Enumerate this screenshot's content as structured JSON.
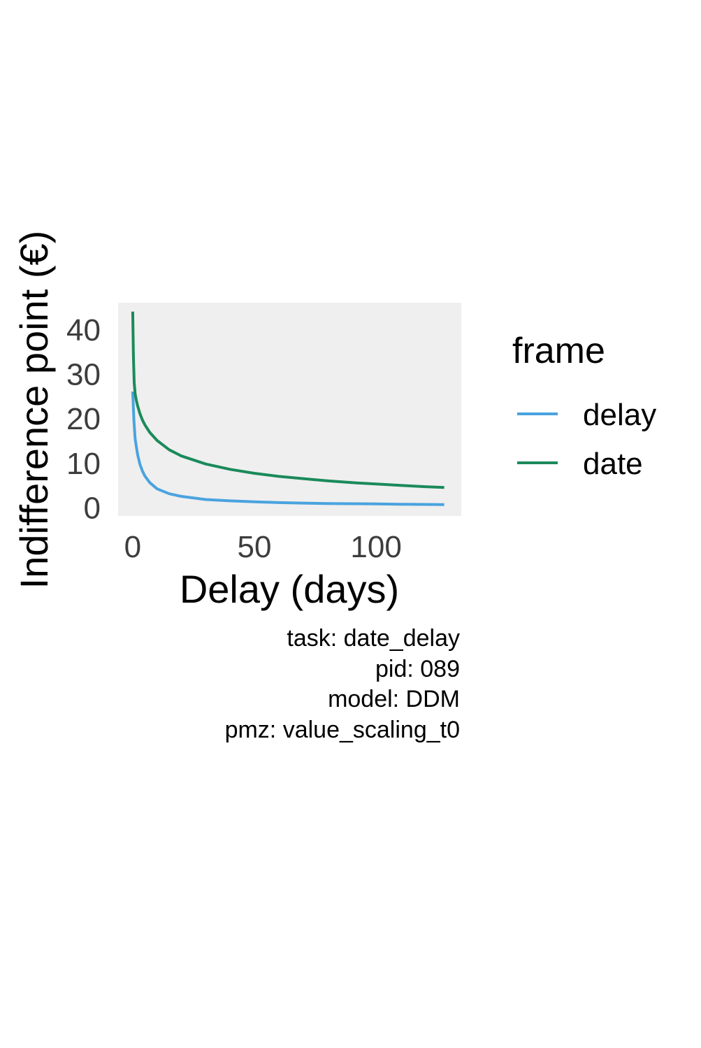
{
  "chart_data": {
    "type": "line",
    "xlabel": "Delay (days)",
    "ylabel": "Indifference point (€)",
    "xlim": [
      -6,
      135
    ],
    "ylim": [
      -2,
      46
    ],
    "x_ticks": [
      0,
      50,
      100
    ],
    "y_ticks": [
      0,
      10,
      20,
      30,
      40
    ],
    "grid": false,
    "panel_background": "#efefef",
    "legend": {
      "title": "frame",
      "position": "right"
    },
    "series": [
      {
        "name": "delay",
        "color": "#4aa3df",
        "x": [
          0,
          0.5,
          1,
          2,
          3,
          4,
          5,
          7,
          10,
          15,
          20,
          30,
          40,
          50,
          60,
          70,
          80,
          90,
          100,
          110,
          120,
          128
        ],
        "y": [
          26,
          19.5,
          15.3,
          11.8,
          9.6,
          8.1,
          7.0,
          5.5,
          4.1,
          3.0,
          2.4,
          1.7,
          1.4,
          1.2,
          1.0,
          0.9,
          0.8,
          0.75,
          0.7,
          0.65,
          0.6,
          0.55
        ]
      },
      {
        "name": "date",
        "color": "#1a8a5a",
        "x": [
          0,
          0.3,
          0.6,
          1,
          1.5,
          2,
          3,
          4,
          5,
          7,
          10,
          15,
          20,
          30,
          40,
          50,
          60,
          70,
          80,
          90,
          100,
          110,
          120,
          128
        ],
        "y": [
          44,
          34,
          28,
          25.5,
          24,
          22.8,
          21,
          19.6,
          18.5,
          16.8,
          15.0,
          12.9,
          11.5,
          9.7,
          8.5,
          7.6,
          6.9,
          6.4,
          5.9,
          5.5,
          5.2,
          4.9,
          4.6,
          4.4
        ]
      }
    ]
  },
  "caption": {
    "lines": [
      "task: date_delay",
      "pid: 089",
      "model: DDM",
      "pmz: value_scaling_t0"
    ]
  }
}
